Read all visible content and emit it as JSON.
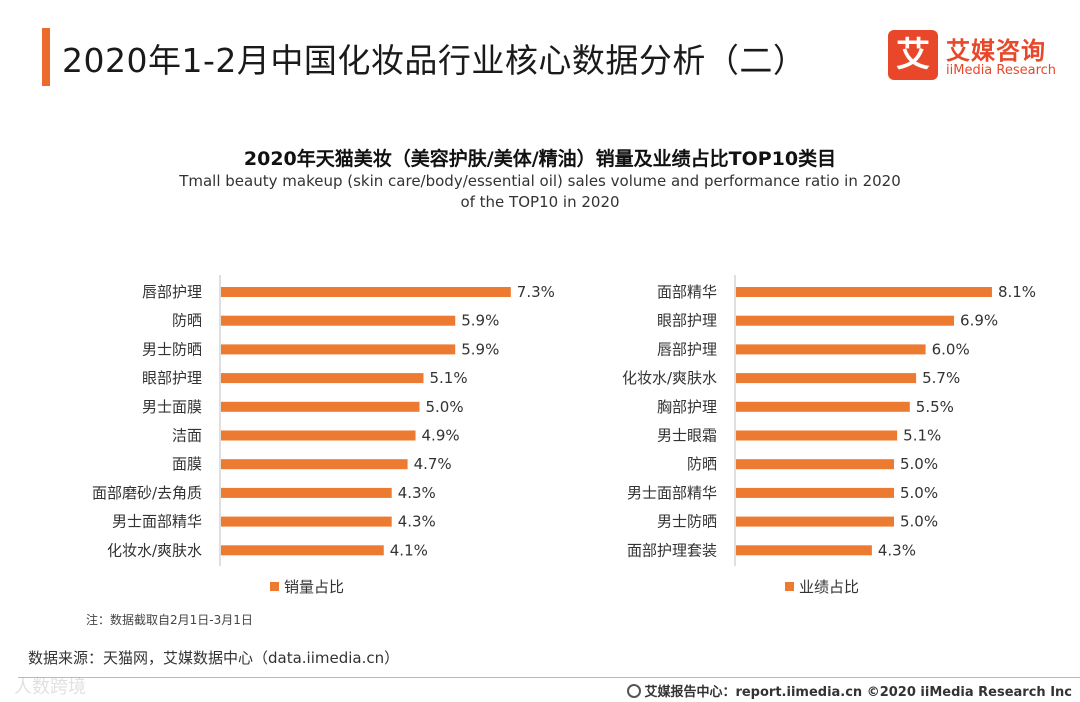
{
  "header": {
    "title": "2020年1-2月中国化妆品行业核心数据分析（二）",
    "logo_mark": "艾",
    "logo_cn": "艾媒咨询",
    "logo_en": "iiMedia Research"
  },
  "chart_heading": {
    "title": "2020年天猫美妆（美容护肤/美体/精油）销量及业绩占比TOP10类目",
    "subtitle_line1": "Tmall beauty makeup (skin care/body/essential oil) sales volume and performance ratio in 2020",
    "subtitle_line2": "of the TOP10 in 2020"
  },
  "colors": {
    "bar": "#ec7a31",
    "axis": "#bfbfbf",
    "accent": "#ec6a2c",
    "brand": "#e8472a"
  },
  "chart_data": [
    {
      "type": "bar",
      "orientation": "horizontal",
      "legend": "销量占比",
      "categories": [
        "唇部护理",
        "防晒",
        "男士防晒",
        "眼部护理",
        "男士面膜",
        "洁面",
        "面膜",
        "面部磨砂/去角质",
        "男士面部精华",
        "化妆水/爽肤水"
      ],
      "values": [
        7.3,
        5.9,
        5.9,
        5.1,
        5.0,
        4.9,
        4.7,
        4.3,
        4.3,
        4.1
      ],
      "labels": [
        "7.3%",
        "5.9%",
        "5.9%",
        "5.1%",
        "5.0%",
        "4.9%",
        "4.7%",
        "4.3%",
        "4.3%",
        "4.1%"
      ],
      "unit": "%"
    },
    {
      "type": "bar",
      "orientation": "horizontal",
      "legend": "业绩占比",
      "categories": [
        "面部精华",
        "眼部护理",
        "唇部护理",
        "化妆水/爽肤水",
        "胸部护理",
        "男士眼霜",
        "防晒",
        "男士面部精华",
        "男士防晒",
        "面部护理套装"
      ],
      "values": [
        8.1,
        6.9,
        6.0,
        5.7,
        5.5,
        5.1,
        5.0,
        5.0,
        5.0,
        4.3
      ],
      "labels": [
        "8.1%",
        "6.9%",
        "6.0%",
        "5.7%",
        "5.5%",
        "5.1%",
        "5.0%",
        "5.0%",
        "5.0%",
        "4.3%"
      ],
      "unit": "%"
    }
  ],
  "note": "注：数据截取自2月1日-3月1日",
  "source": "数据来源：天猫网，艾媒数据中心（data.iimedia.cn）",
  "footer": "艾媒报告中心：report.iimedia.cn  ©2020  iiMedia Research  Inc",
  "watermark": "人数跨境"
}
